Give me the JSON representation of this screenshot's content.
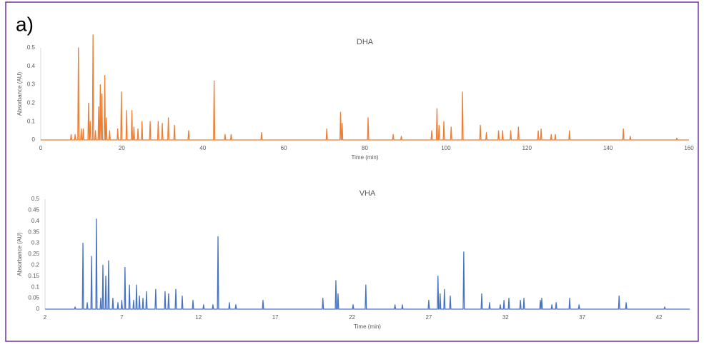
{
  "panel_label": "a)",
  "chart_data": [
    {
      "type": "line",
      "title": "DHA",
      "xlabel": "Time (min)",
      "ylabel": "Absorbance (AU)",
      "xlim": [
        0,
        160
      ],
      "xticks": [
        0,
        20,
        40,
        60,
        80,
        100,
        120,
        140,
        160
      ],
      "ylim": [
        0,
        0.5
      ],
      "yticks": [
        0,
        0.1,
        0.2,
        0.3,
        0.4,
        0.5
      ],
      "series": [
        {
          "name": "DHA",
          "color": "#ed7d31",
          "x": [
            0,
            7.35,
            7.5,
            7.65,
            8.35,
            8.5,
            8.65,
            9.15,
            9.3,
            9.45,
            9.85,
            10,
            10.15,
            10.35,
            10.5,
            10.65,
            11.65,
            11.8,
            11.95,
            12.05,
            12.2,
            12.35,
            12.75,
            12.9,
            13.05,
            13.35,
            13.5,
            13.65,
            14.15,
            14.3,
            14.45,
            14.55,
            14.7,
            14.85,
            14.95,
            15.1,
            15.25,
            15.65,
            15.8,
            15.95,
            16.05,
            16.2,
            16.35,
            16.85,
            17,
            17.15,
            18.85,
            19,
            19.15,
            19.75,
            19.9,
            20.05,
            21.05,
            21.2,
            21.35,
            22.35,
            22.5,
            22.65,
            22.85,
            23,
            23.15,
            23.85,
            24,
            24.15,
            24.85,
            25,
            25.15,
            26.85,
            27,
            27.15,
            28.85,
            29,
            29.15,
            29.85,
            30,
            30.15,
            31.35,
            31.5,
            31.65,
            32.85,
            33,
            33.15,
            36.35,
            36.5,
            36.65,
            42.65,
            42.8,
            42.95,
            45.35,
            45.5,
            45.65,
            46.85,
            47,
            47.15,
            54.35,
            54.5,
            54.65,
            70.45,
            70.6,
            70.75,
            73.85,
            74,
            74.15,
            74.25,
            74.4,
            74.55,
            80.65,
            80.8,
            80.95,
            86.85,
            87,
            87.15,
            88.85,
            89,
            89.15,
            96.35,
            96.5,
            96.65,
            97.65,
            97.8,
            97.95,
            98.15,
            98.3,
            98.45,
            99.35,
            99.5,
            99.65,
            101.15,
            101.3,
            101.45,
            103.95,
            104.1,
            104.25,
            108.35,
            108.5,
            108.65,
            109.85,
            110,
            110.15,
            112.85,
            113,
            113.15,
            113.85,
            114,
            114.15,
            115.85,
            116,
            116.15,
            117.75,
            117.9,
            118.05,
            122.65,
            122.8,
            122.95,
            123.35,
            123.5,
            123.65,
            125.85,
            126,
            126.15,
            126.85,
            127,
            127.15,
            130.35,
            130.5,
            130.65,
            143.65,
            143.8,
            143.95,
            145.35,
            145.5,
            145.65,
            156.85,
            157,
            157.15,
            160
          ],
          "values": [
            0,
            0,
            0.03,
            0,
            0,
            0.03,
            0,
            0,
            0.5,
            0,
            0,
            0.06,
            0,
            0,
            0.06,
            0,
            0,
            0.2,
            0,
            0,
            0.1,
            0,
            0,
            0.57,
            0,
            0,
            0.05,
            0,
            0,
            0.18,
            0,
            0,
            0.3,
            0,
            0,
            0.25,
            0,
            0,
            0.35,
            0,
            0,
            0.12,
            0,
            0,
            0.05,
            0,
            0,
            0.06,
            0,
            0,
            0.26,
            0,
            0,
            0.16,
            0,
            0,
            0.16,
            0,
            0,
            0.07,
            0,
            0,
            0.06,
            0,
            0,
            0.1,
            0,
            0,
            0.1,
            0,
            0,
            0.1,
            0,
            0,
            0.09,
            0,
            0,
            0.12,
            0,
            0,
            0.08,
            0,
            0,
            0.05,
            0,
            0,
            0.32,
            0,
            0,
            0.03,
            0,
            0,
            0.03,
            0,
            0,
            0.04,
            0,
            0,
            0.06,
            0,
            0,
            0.15,
            0,
            0,
            0.09,
            0,
            0,
            0.12,
            0,
            0,
            0.03,
            0,
            0,
            0.02,
            0,
            0,
            0.05,
            0,
            0,
            0.17,
            0,
            0,
            0.08,
            0,
            0,
            0.1,
            0,
            0,
            0.07,
            0,
            0,
            0.26,
            0,
            0,
            0.08,
            0,
            0,
            0.04,
            0,
            0,
            0.05,
            0,
            0,
            0.05,
            0,
            0,
            0.05,
            0,
            0,
            0.07,
            0,
            0,
            0.05,
            0,
            0,
            0.06,
            0,
            0,
            0.03,
            0,
            0,
            0.03,
            0,
            0,
            0.05,
            0,
            0,
            0.06,
            0,
            0,
            0.02,
            0,
            0,
            0.01,
            0,
            0
          ]
        }
      ]
    },
    {
      "type": "line",
      "title": "VHA",
      "xlabel": "Time (min)",
      "ylabel": "Absorbance (AU)",
      "xlim": [
        2,
        44
      ],
      "xticks": [
        2,
        7,
        12,
        17,
        22,
        27,
        32,
        37,
        42
      ],
      "ylim": [
        0,
        0.5
      ],
      "yticks": [
        0,
        0.05,
        0.1,
        0.15,
        0.2,
        0.25,
        0.3,
        0.35,
        0.4,
        0.45,
        0.5
      ],
      "series": [
        {
          "name": "VHA",
          "color": "#4472c4",
          "x": [
            2,
            3.92,
            3.96,
            4,
            4.43,
            4.47,
            4.51,
            4.71,
            4.75,
            4.79,
            4.99,
            5.03,
            5.07,
            5.31,
            5.35,
            5.39,
            5.59,
            5.63,
            5.67,
            5.73,
            5.77,
            5.81,
            5.92,
            5.96,
            6,
            6.1,
            6.14,
            6.18,
            6.38,
            6.42,
            6.46,
            6.71,
            6.75,
            6.79,
            6.96,
            7,
            7.04,
            7.17,
            7.21,
            7.25,
            7.46,
            7.5,
            7.54,
            7.73,
            7.77,
            7.81,
            7.92,
            7.96,
            8,
            8.11,
            8.15,
            8.19,
            8.34,
            8.38,
            8.42,
            8.57,
            8.61,
            8.65,
            9.17,
            9.21,
            9.25,
            9.78,
            9.82,
            9.86,
            10.01,
            10.05,
            10.09,
            10.48,
            10.52,
            10.56,
            10.9,
            10.94,
            10.98,
            11.6,
            11.64,
            11.68,
            12.29,
            12.33,
            12.37,
            12.9,
            12.94,
            12.98,
            13.23,
            13.27,
            13.31,
            13.97,
            14.01,
            14.05,
            14.39,
            14.43,
            14.47,
            16.16,
            16.2,
            16.24,
            20.06,
            20.1,
            20.14,
            20.91,
            20.95,
            20.99,
            21.05,
            21.09,
            21.13,
            22.03,
            22.07,
            22.11,
            22.86,
            22.9,
            22.94,
            24.76,
            24.8,
            24.84,
            25.24,
            25.28,
            25.32,
            26.96,
            27,
            27.04,
            27.56,
            27.6,
            27.64,
            27.7,
            27.74,
            27.78,
            27.98,
            28.02,
            28.06,
            28.36,
            28.4,
            28.44,
            29.24,
            29.28,
            29.32,
            30.41,
            30.45,
            30.49,
            30.92,
            30.96,
            31,
            31.62,
            31.66,
            31.7,
            31.86,
            31.9,
            31.94,
            32.18,
            32.22,
            32.26,
            32.93,
            32.97,
            33.01,
            33.16,
            33.2,
            33.24,
            34.23,
            34.27,
            34.31,
            34.32,
            34.36,
            34.4,
            34.98,
            35.02,
            35.06,
            35.26,
            35.3,
            35.34,
            36.14,
            36.18,
            36.22,
            36.75,
            36.79,
            36.83,
            39.36,
            39.4,
            39.44,
            39.82,
            39.86,
            39.9,
            42.33,
            42.37,
            42.41,
            44
          ],
          "values": [
            0,
            0,
            0.01,
            0,
            0,
            0.3,
            0,
            0,
            0.03,
            0,
            0,
            0.24,
            0,
            0,
            0.41,
            0,
            0,
            0.05,
            0,
            0,
            0.2,
            0,
            0,
            0.15,
            0,
            0,
            0.22,
            0,
            0,
            0.05,
            0,
            0,
            0.03,
            0,
            0,
            0.04,
            0,
            0,
            0.19,
            0,
            0,
            0.11,
            0,
            0,
            0.04,
            0,
            0,
            0.11,
            0,
            0,
            0.06,
            0,
            0,
            0.05,
            0,
            0,
            0.08,
            0,
            0,
            0.09,
            0,
            0,
            0.08,
            0,
            0,
            0.07,
            0,
            0,
            0.09,
            0,
            0,
            0.06,
            0,
            0,
            0.04,
            0,
            0,
            0.02,
            0,
            0,
            0.02,
            0,
            0,
            0.33,
            0,
            0,
            0.03,
            0,
            0,
            0.02,
            0,
            0,
            0.04,
            0,
            0,
            0.05,
            0,
            0,
            0.13,
            0,
            0,
            0.07,
            0,
            0,
            0.02,
            0,
            0,
            0.11,
            0,
            0,
            0.02,
            0,
            0,
            0.02,
            0,
            0,
            0.04,
            0,
            0,
            0.15,
            0,
            0,
            0.07,
            0,
            0,
            0.09,
            0,
            0,
            0.06,
            0,
            0,
            0.26,
            0,
            0,
            0.07,
            0,
            0,
            0.03,
            0,
            0,
            0.02,
            0,
            0,
            0.04,
            0,
            0,
            0.05,
            0,
            0,
            0.04,
            0,
            0,
            0.05,
            0,
            0,
            0.04,
            0,
            0,
            0.05,
            0,
            0,
            0.02,
            0,
            0,
            0.03,
            0,
            0,
            0.05,
            0,
            0,
            0.02,
            0,
            0,
            0.06,
            0,
            0,
            0.03,
            0,
            0,
            0.01,
            0,
            0
          ]
        }
      ]
    }
  ]
}
